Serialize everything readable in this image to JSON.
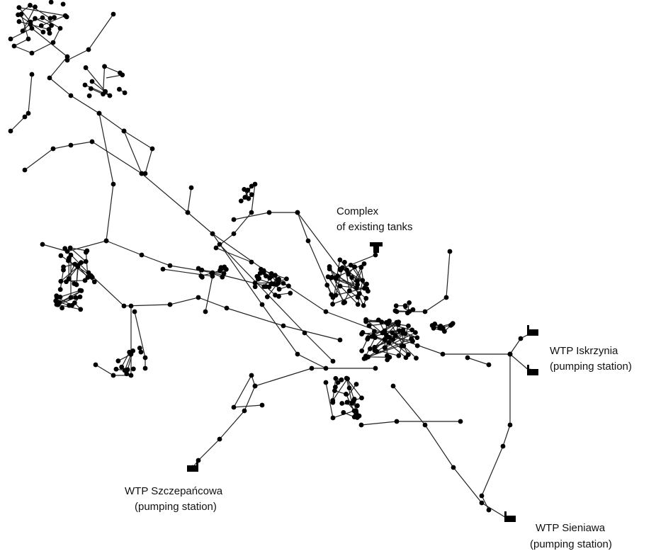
{
  "labels": [
    {
      "lines": [
        "Complex",
        "of existing tanks"
      ]
    },
    {
      "lines": [
        "WTP Iskrzynia",
        "(pumping station)"
      ]
    },
    {
      "lines": [
        "WTP Szczepańcowa",
        "(pumping station)"
      ]
    },
    {
      "lines": [
        "WTP Sieniawa",
        "(pumping station)"
      ]
    }
  ]
}
